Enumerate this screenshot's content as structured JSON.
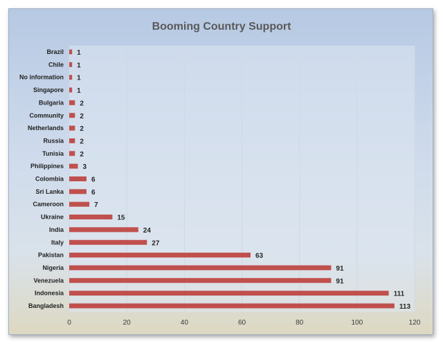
{
  "chart_data": {
    "type": "bar",
    "orientation": "horizontal",
    "title": "Booming Country Support",
    "categories": [
      "Brazil",
      "Chile",
      "No information",
      "Singapore",
      "Bulgaria",
      "Community",
      "Netherlands",
      "Russia",
      "Tunisia",
      "Philippines",
      "Colombia",
      "Sri Lanka",
      "Cameroon",
      "Ukraine",
      "India",
      "Italy",
      "Pakistan",
      "Nigeria",
      "Venezuela",
      "Indonesia",
      "Bangladesh"
    ],
    "values": [
      1,
      1,
      1,
      1,
      2,
      2,
      2,
      2,
      2,
      3,
      6,
      6,
      7,
      15,
      24,
      27,
      63,
      91,
      91,
      111,
      113
    ],
    "xlim": [
      0,
      120
    ],
    "x_ticks": [
      0,
      20,
      40,
      60,
      80,
      100,
      120
    ],
    "grid": true,
    "legend": "none",
    "colors": {
      "bar": "#c0504d",
      "grid": "#d0d8e2",
      "plot_bg": "#dde6f1"
    }
  }
}
